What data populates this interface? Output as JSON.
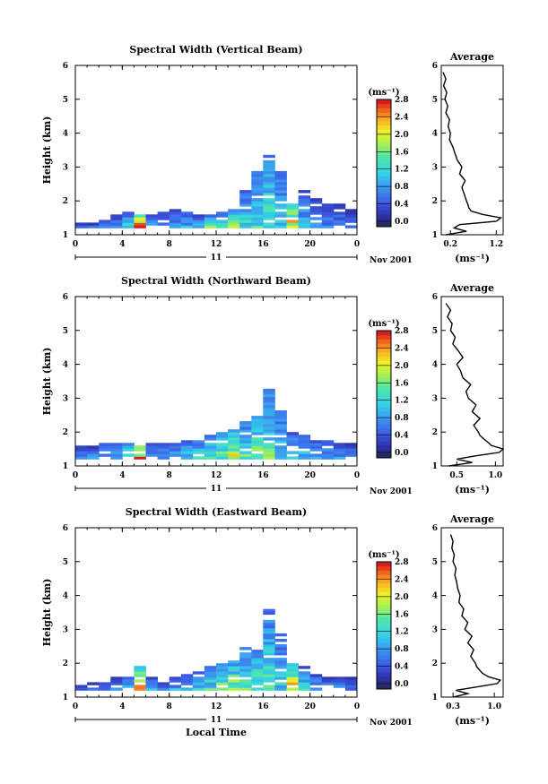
{
  "chart_data": [
    {
      "type": "heatmap",
      "title": "Spectral Width (Vertical Beam)",
      "ylabel": "Height (km)",
      "xlabel": "",
      "xticks": [
        "0",
        "4",
        "8",
        "12",
        "16",
        "20",
        "0"
      ],
      "yticks": [
        "1",
        "2",
        "3",
        "4",
        "5",
        "6"
      ],
      "xlim": [
        0,
        24
      ],
      "ylim": [
        1,
        6
      ],
      "day_label": "11",
      "date_label": "Nov 2001",
      "colorbar": {
        "title": "(ms⁻¹)",
        "ticks": [
          "0.0",
          "0.4",
          "0.8",
          "1.2",
          "1.6",
          "2.0",
          "2.4",
          "2.8"
        ],
        "range": [
          0,
          2.8
        ]
      },
      "profile": {
        "title": "Average",
        "xlabel": "(ms⁻¹)",
        "xticks": [
          "0.2",
          "1.2"
        ],
        "xlim": [
          0.0,
          1.35
        ],
        "ylim": [
          1,
          6
        ],
        "height": [
          1.0,
          1.1,
          1.2,
          1.3,
          1.4,
          1.5,
          1.6,
          1.7,
          1.8,
          1.9,
          2.0,
          2.2,
          2.4,
          2.6,
          2.8,
          3.0,
          3.2,
          3.4,
          3.6,
          3.8,
          4.0,
          4.2,
          4.4,
          4.6,
          4.8,
          5.0,
          5.2,
          5.4,
          5.6,
          5.8
        ],
        "width": [
          0.1,
          0.55,
          0.28,
          0.4,
          1.2,
          1.3,
          0.9,
          0.65,
          0.6,
          0.58,
          0.55,
          0.5,
          0.45,
          0.52,
          0.4,
          0.45,
          0.35,
          0.3,
          0.25,
          0.18,
          0.2,
          0.15,
          0.18,
          0.1,
          0.14,
          0.08,
          0.12,
          0.05,
          0.1,
          0.04
        ]
      },
      "cells": [
        [
          0,
          1.3,
          0.5
        ],
        [
          1,
          1.3,
          0.6
        ],
        [
          2,
          1.4,
          0.7
        ],
        [
          3,
          1.5,
          0.8
        ],
        [
          4,
          1.6,
          1.2
        ],
        [
          5,
          1.6,
          2.6
        ],
        [
          6,
          1.5,
          1.0
        ],
        [
          7,
          1.6,
          0.8
        ],
        [
          8,
          1.7,
          0.9
        ],
        [
          9,
          1.6,
          1.0
        ],
        [
          10,
          1.5,
          1.1
        ],
        [
          11,
          1.5,
          1.9
        ],
        [
          12,
          1.6,
          1.3
        ],
        [
          13,
          1.7,
          1.8
        ],
        [
          14,
          2.2,
          1.3
        ],
        [
          15,
          2.8,
          1.3
        ],
        [
          16,
          3.3,
          1.5
        ],
        [
          17,
          2.8,
          1.2
        ],
        [
          18,
          1.8,
          2.4
        ],
        [
          19,
          2.2,
          1.0
        ],
        [
          20,
          2.0,
          0.9
        ],
        [
          21,
          1.9,
          0.8
        ],
        [
          22,
          1.8,
          0.7
        ],
        [
          23,
          1.7,
          0.6
        ]
      ]
    },
    {
      "type": "heatmap",
      "title": "Spectral Width (Northward Beam)",
      "ylabel": "Height (km)",
      "xlabel": "",
      "xticks": [
        "0",
        "4",
        "8",
        "12",
        "16",
        "20",
        "0"
      ],
      "yticks": [
        "1",
        "2",
        "3",
        "4",
        "5",
        "6"
      ],
      "xlim": [
        0,
        24
      ],
      "ylim": [
        1,
        6
      ],
      "day_label": "11",
      "date_label": "Nov 2001",
      "colorbar": {
        "title": "(ms⁻¹)",
        "ticks": [
          "0.0",
          "0.4",
          "0.8",
          "1.2",
          "1.6",
          "2.0",
          "2.4",
          "2.8"
        ],
        "range": [
          0,
          2.8
        ]
      },
      "profile": {
        "title": "Average",
        "xlabel": "(ms⁻¹)",
        "xticks": [
          "0.5",
          "1.0"
        ],
        "xlim": [
          0.3,
          1.1
        ],
        "ylim": [
          1,
          6
        ],
        "height": [
          1.0,
          1.1,
          1.2,
          1.3,
          1.4,
          1.5,
          1.6,
          1.7,
          1.8,
          1.9,
          2.0,
          2.2,
          2.4,
          2.6,
          2.8,
          3.0,
          3.2,
          3.4,
          3.6,
          3.8,
          4.0,
          4.2,
          4.4,
          4.6,
          4.8,
          5.0,
          5.2,
          5.4,
          5.6,
          5.8
        ],
        "width": [
          0.4,
          0.7,
          0.5,
          0.75,
          1.05,
          1.1,
          0.95,
          0.9,
          0.85,
          0.8,
          0.78,
          0.72,
          0.8,
          0.7,
          0.75,
          0.65,
          0.62,
          0.68,
          0.58,
          0.55,
          0.5,
          0.58,
          0.52,
          0.45,
          0.48,
          0.42,
          0.44,
          0.38,
          0.42,
          0.36
        ]
      },
      "cells": [
        [
          0,
          1.5,
          0.7
        ],
        [
          1,
          1.5,
          0.8
        ],
        [
          2,
          1.6,
          0.9
        ],
        [
          3,
          1.6,
          1.0
        ],
        [
          4,
          1.7,
          1.3
        ],
        [
          5,
          1.7,
          2.6
        ],
        [
          6,
          1.6,
          1.0
        ],
        [
          7,
          1.6,
          0.9
        ],
        [
          8,
          1.6,
          1.0
        ],
        [
          9,
          1.7,
          1.2
        ],
        [
          10,
          1.7,
          1.3
        ],
        [
          11,
          1.8,
          1.4
        ],
        [
          12,
          1.9,
          1.6
        ],
        [
          13,
          2.0,
          1.9
        ],
        [
          14,
          2.2,
          1.5
        ],
        [
          15,
          2.5,
          1.6
        ],
        [
          16,
          3.2,
          1.5
        ],
        [
          17,
          2.6,
          1.3
        ],
        [
          18,
          1.9,
          1.2
        ],
        [
          19,
          1.8,
          1.1
        ],
        [
          20,
          1.7,
          1.0
        ],
        [
          21,
          1.7,
          0.9
        ],
        [
          22,
          1.6,
          0.8
        ],
        [
          23,
          1.6,
          0.7
        ]
      ]
    },
    {
      "type": "heatmap",
      "title": "Spectral Width (Eastward Beam)",
      "ylabel": "Height (km)",
      "xlabel": "Local Time",
      "xticks": [
        "0",
        "4",
        "8",
        "12",
        "16",
        "20",
        "0"
      ],
      "yticks": [
        "1",
        "2",
        "3",
        "4",
        "5",
        "6"
      ],
      "xlim": [
        0,
        24
      ],
      "ylim": [
        1,
        6
      ],
      "day_label": "11",
      "date_label": "Nov 2001",
      "colorbar": {
        "title": "(ms⁻¹)",
        "ticks": [
          "0.0",
          "0.4",
          "0.8",
          "1.2",
          "1.6",
          "2.0",
          "2.4",
          "2.8"
        ],
        "range": [
          0,
          2.8
        ]
      },
      "profile": {
        "title": "Average",
        "xlabel": "(ms⁻¹)",
        "xticks": [
          "0.3",
          "1.0"
        ],
        "xlim": [
          0.1,
          1.15
        ],
        "ylim": [
          1,
          6
        ],
        "height": [
          1.0,
          1.1,
          1.2,
          1.3,
          1.4,
          1.5,
          1.6,
          1.7,
          1.8,
          1.9,
          2.0,
          2.2,
          2.4,
          2.6,
          2.8,
          3.0,
          3.2,
          3.4,
          3.6,
          3.8,
          4.0,
          4.2,
          4.4,
          4.6,
          4.8,
          5.0,
          5.2,
          5.4,
          5.6,
          5.8
        ],
        "width": [
          0.3,
          0.55,
          0.35,
          0.7,
          1.05,
          1.1,
          0.9,
          0.8,
          0.75,
          0.7,
          0.68,
          0.6,
          0.65,
          0.55,
          0.62,
          0.5,
          0.55,
          0.45,
          0.48,
          0.4,
          0.42,
          0.38,
          0.36,
          0.33,
          0.35,
          0.3,
          0.32,
          0.28,
          0.3,
          0.26
        ]
      },
      "cells": [
        [
          0,
          1.3,
          0.6
        ],
        [
          1,
          1.4,
          0.6
        ],
        [
          2,
          1.4,
          0.7
        ],
        [
          3,
          1.5,
          0.8
        ],
        [
          4,
          1.5,
          1.0
        ],
        [
          5,
          1.8,
          2.4
        ],
        [
          6,
          1.5,
          0.9
        ],
        [
          7,
          1.4,
          0.8
        ],
        [
          8,
          1.5,
          0.9
        ],
        [
          9,
          1.6,
          1.0
        ],
        [
          10,
          1.7,
          1.2
        ],
        [
          11,
          1.8,
          1.4
        ],
        [
          12,
          1.9,
          1.6
        ],
        [
          13,
          2.0,
          1.8
        ],
        [
          14,
          2.4,
          1.6
        ],
        [
          15,
          2.4,
          1.5
        ],
        [
          16,
          3.5,
          1.4
        ],
        [
          17,
          2.8,
          1.2
        ],
        [
          18,
          2.0,
          2.2
        ],
        [
          19,
          1.8,
          1.2
        ],
        [
          20,
          1.6,
          1.0
        ],
        [
          21,
          1.5,
          0.9
        ],
        [
          22,
          1.5,
          0.8
        ],
        [
          23,
          1.5,
          0.7
        ]
      ]
    }
  ]
}
